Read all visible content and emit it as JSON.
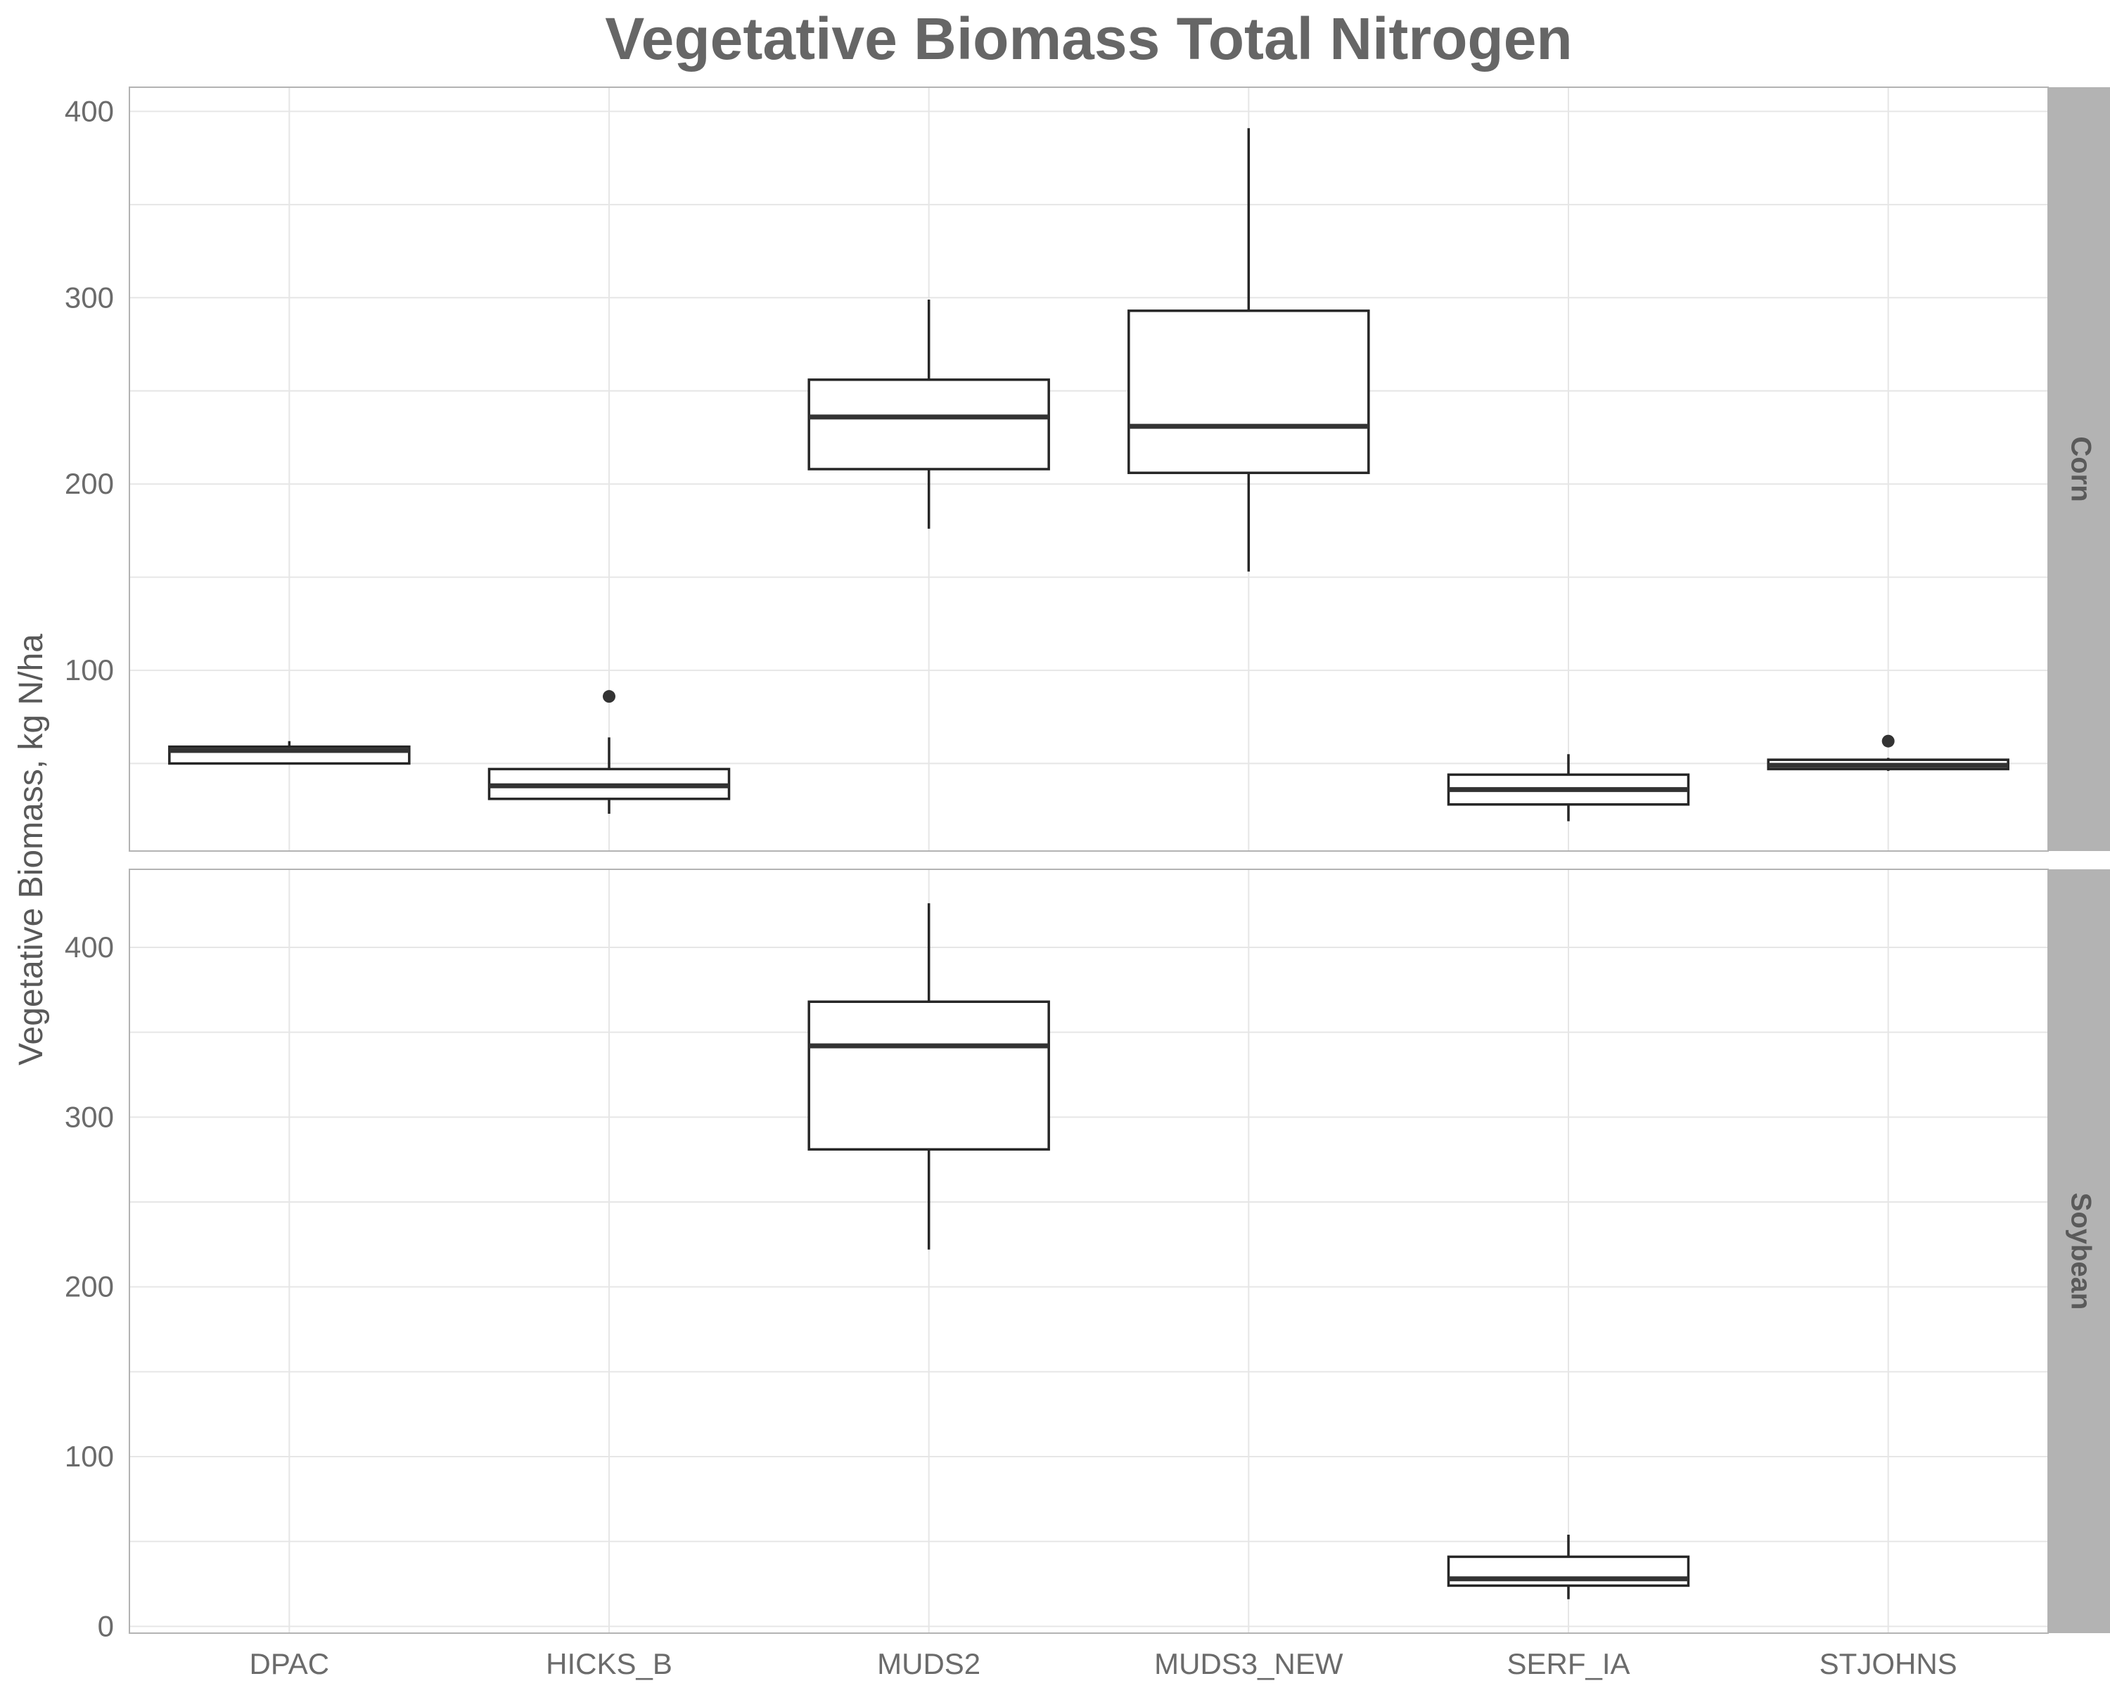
{
  "chart_data": {
    "type": "boxplot",
    "title": "Vegetative Biomass Total Nitrogen",
    "ylabel": "Vegetative Biomass, kg N/ha",
    "xlabel": "",
    "categories": [
      "DPAC",
      "HICKS_B",
      "MUDS2",
      "MUDS3_NEW",
      "SERF_IA",
      "STJOHNS"
    ],
    "grid": true,
    "legend": "none",
    "panels": [
      {
        "name": "Corn",
        "ylim": [
          3,
          413
        ],
        "yticks": [
          100,
          200,
          300,
          400
        ],
        "boxes": [
          {
            "category": "DPAC",
            "lower": 50,
            "q1": 50,
            "median": 57,
            "q3": 59,
            "upper": 62,
            "outliers": []
          },
          {
            "category": "HICKS_B",
            "lower": 23,
            "q1": 31,
            "median": 38,
            "q3": 47,
            "upper": 64,
            "outliers": [
              86
            ]
          },
          {
            "category": "MUDS2",
            "lower": 176,
            "q1": 208,
            "median": 236,
            "q3": 256,
            "upper": 299,
            "outliers": []
          },
          {
            "category": "MUDS3_NEW",
            "lower": 153,
            "q1": 206,
            "median": 231,
            "q3": 293,
            "upper": 391,
            "outliers": []
          },
          {
            "category": "SERF_IA",
            "lower": 19,
            "q1": 28,
            "median": 36,
            "q3": 44,
            "upper": 55,
            "outliers": []
          },
          {
            "category": "STJOHNS",
            "lower": 46,
            "q1": 47,
            "median": 49,
            "q3": 52,
            "upper": 53,
            "outliers": [
              62
            ]
          }
        ]
      },
      {
        "name": "Soybean",
        "ylim": [
          -4,
          446
        ],
        "yticks": [
          0,
          100,
          200,
          300,
          400
        ],
        "boxes": [
          {
            "category": "MUDS2",
            "lower": 222,
            "q1": 281,
            "median": 342,
            "q3": 368,
            "upper": 426,
            "outliers": []
          },
          {
            "category": "SERF_IA",
            "lower": 16,
            "q1": 24,
            "median": 28,
            "q3": 41,
            "upper": 54,
            "outliers": []
          }
        ]
      }
    ]
  }
}
